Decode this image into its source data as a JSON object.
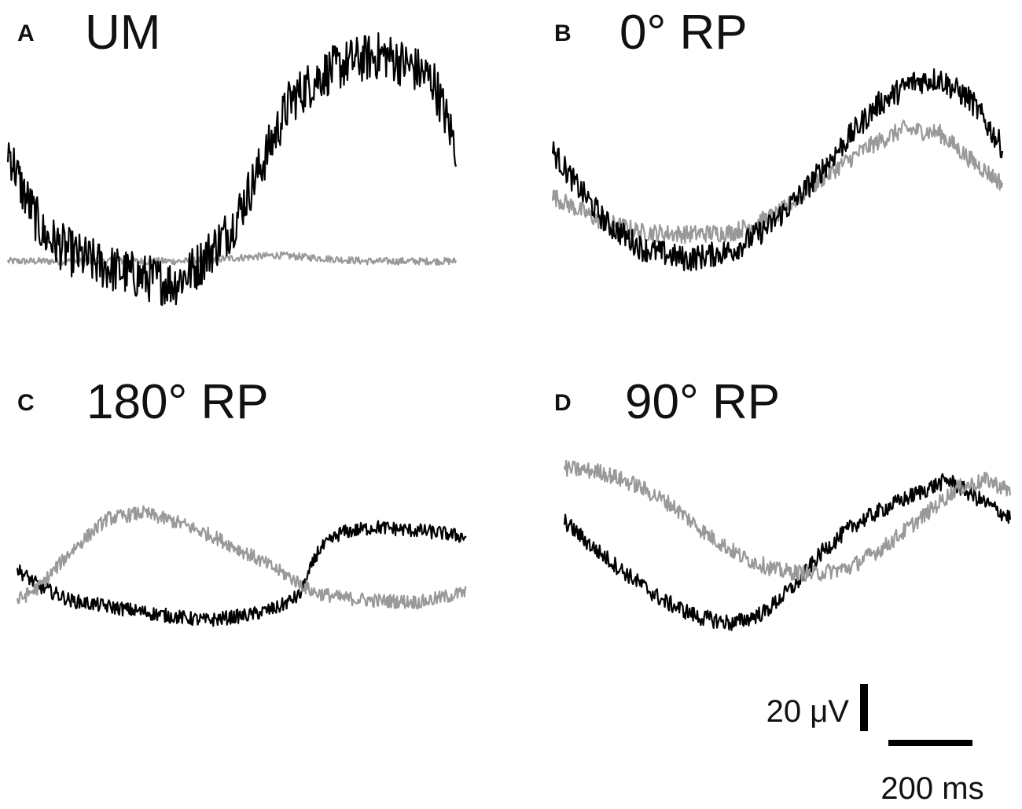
{
  "colors": {
    "black_trace": "#000000",
    "gray_trace": "#999999",
    "background": "#ffffff"
  },
  "chart_data": [
    {
      "type": "line",
      "panel_letter": "A",
      "title": "UM",
      "series": [
        {
          "color": "black",
          "points": [
            [
              0.0,
              0.62
            ],
            [
              0.03,
              0.42
            ],
            [
              0.08,
              0.18
            ],
            [
              0.15,
              0.08
            ],
            [
              0.22,
              0.02
            ],
            [
              0.3,
              -0.03
            ],
            [
              0.37,
              -0.06
            ],
            [
              0.42,
              0.02
            ],
            [
              0.5,
              0.22
            ],
            [
              0.57,
              0.55
            ],
            [
              0.63,
              0.85
            ],
            [
              0.7,
              0.98
            ],
            [
              0.77,
              1.05
            ],
            [
              0.84,
              1.08
            ],
            [
              0.9,
              1.02
            ],
            [
              0.95,
              0.95
            ],
            [
              1.0,
              0.62
            ]
          ],
          "noise": 0.12
        },
        {
          "color": "gray",
          "points": [
            [
              0.0,
              0.05
            ],
            [
              0.2,
              0.05
            ],
            [
              0.4,
              0.05
            ],
            [
              0.6,
              0.08
            ],
            [
              0.8,
              0.05
            ],
            [
              1.0,
              0.05
            ]
          ],
          "noise": 0.018
        }
      ]
    },
    {
      "type": "line",
      "panel_letter": "B",
      "title": "0° RP",
      "series": [
        {
          "color": "black",
          "points": [
            [
              0.0,
              0.6
            ],
            [
              0.05,
              0.42
            ],
            [
              0.12,
              0.2
            ],
            [
              0.2,
              0.06
            ],
            [
              0.3,
              0.0
            ],
            [
              0.4,
              0.05
            ],
            [
              0.48,
              0.18
            ],
            [
              0.56,
              0.38
            ],
            [
              0.64,
              0.62
            ],
            [
              0.72,
              0.85
            ],
            [
              0.8,
              0.98
            ],
            [
              0.86,
              1.0
            ],
            [
              0.93,
              0.88
            ],
            [
              1.0,
              0.62
            ]
          ],
          "noise": 0.07
        },
        {
          "color": "gray",
          "points": [
            [
              0.0,
              0.35
            ],
            [
              0.1,
              0.22
            ],
            [
              0.2,
              0.15
            ],
            [
              0.3,
              0.14
            ],
            [
              0.4,
              0.15
            ],
            [
              0.5,
              0.25
            ],
            [
              0.6,
              0.45
            ],
            [
              0.7,
              0.62
            ],
            [
              0.78,
              0.72
            ],
            [
              0.86,
              0.7
            ],
            [
              0.93,
              0.55
            ],
            [
              1.0,
              0.42
            ]
          ],
          "noise": 0.05
        }
      ]
    },
    {
      "type": "line",
      "panel_letter": "C",
      "title": "180° RP",
      "series": [
        {
          "color": "black",
          "points": [
            [
              0.0,
              0.42
            ],
            [
              0.05,
              0.3
            ],
            [
              0.12,
              0.2
            ],
            [
              0.22,
              0.15
            ],
            [
              0.32,
              0.1
            ],
            [
              0.42,
              0.06
            ],
            [
              0.52,
              0.1
            ],
            [
              0.58,
              0.15
            ],
            [
              0.63,
              0.24
            ],
            [
              0.67,
              0.55
            ],
            [
              0.72,
              0.68
            ],
            [
              0.8,
              0.72
            ],
            [
              0.87,
              0.7
            ],
            [
              0.94,
              0.68
            ],
            [
              1.0,
              0.65
            ]
          ],
          "noise": 0.05
        },
        {
          "color": "gray",
          "points": [
            [
              0.0,
              0.2
            ],
            [
              0.05,
              0.3
            ],
            [
              0.12,
              0.55
            ],
            [
              0.2,
              0.78
            ],
            [
              0.28,
              0.82
            ],
            [
              0.36,
              0.75
            ],
            [
              0.44,
              0.65
            ],
            [
              0.52,
              0.52
            ],
            [
              0.6,
              0.38
            ],
            [
              0.66,
              0.26
            ],
            [
              0.72,
              0.22
            ],
            [
              0.8,
              0.2
            ],
            [
              0.9,
              0.19
            ],
            [
              1.0,
              0.26
            ]
          ],
          "noise": 0.05
        }
      ]
    },
    {
      "type": "line",
      "panel_letter": "D",
      "title": "90° RP",
      "series": [
        {
          "color": "black",
          "points": [
            [
              0.0,
              0.7
            ],
            [
              0.06,
              0.55
            ],
            [
              0.14,
              0.38
            ],
            [
              0.22,
              0.22
            ],
            [
              0.3,
              0.12
            ],
            [
              0.38,
              0.08
            ],
            [
              0.45,
              0.15
            ],
            [
              0.52,
              0.32
            ],
            [
              0.58,
              0.52
            ],
            [
              0.65,
              0.68
            ],
            [
              0.72,
              0.78
            ],
            [
              0.8,
              0.88
            ],
            [
              0.86,
              0.95
            ],
            [
              0.92,
              0.85
            ],
            [
              1.0,
              0.72
            ]
          ],
          "noise": 0.05
        },
        {
          "color": "gray",
          "points": [
            [
              0.0,
              1.02
            ],
            [
              0.08,
              1.0
            ],
            [
              0.16,
              0.92
            ],
            [
              0.24,
              0.8
            ],
            [
              0.32,
              0.62
            ],
            [
              0.4,
              0.48
            ],
            [
              0.48,
              0.4
            ],
            [
              0.56,
              0.38
            ],
            [
              0.64,
              0.42
            ],
            [
              0.72,
              0.55
            ],
            [
              0.8,
              0.72
            ],
            [
              0.88,
              0.9
            ],
            [
              0.95,
              0.95
            ],
            [
              1.0,
              0.88
            ]
          ],
          "noise": 0.05
        }
      ]
    }
  ],
  "scale_bar": {
    "vertical_label": "20 μV",
    "horizontal_label": "200 ms",
    "vertical_value_uV": 20,
    "horizontal_value_ms": 200
  }
}
